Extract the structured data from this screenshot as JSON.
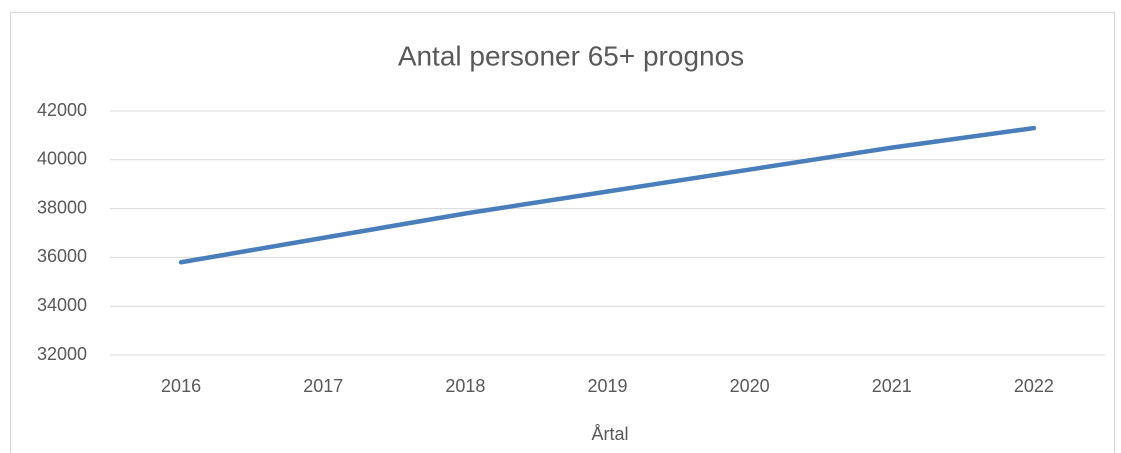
{
  "chart_data": {
    "type": "line",
    "title": "Antal personer 65+ prognos",
    "x_label": "Årtal",
    "categories": [
      "2016",
      "2017",
      "2018",
      "2019",
      "2020",
      "2021",
      "2022"
    ],
    "series": [
      {
        "name": "Antal personer 65+",
        "color": "#4a7ebb",
        "values": [
          35800,
          36800,
          37800,
          38700,
          39600,
          40500,
          41300
        ]
      }
    ],
    "ylim": [
      32000,
      42000
    ],
    "yticks": [
      32000,
      34000,
      36000,
      38000,
      40000,
      42000
    ],
    "grid": true,
    "legend": false
  }
}
